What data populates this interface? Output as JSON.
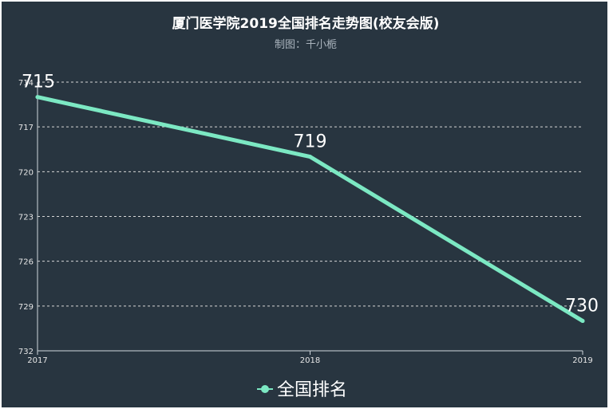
{
  "chart_data": {
    "type": "line",
    "title": "厦门医学院2019全国排名走势图(校友会版)",
    "subtitle": "制图：千小栀",
    "x": [
      "2017",
      "2018",
      "2019"
    ],
    "series": [
      {
        "name": "全国排名",
        "values": [
          715,
          719,
          730
        ]
      }
    ],
    "y_axis": {
      "ticks": [
        714,
        717,
        720,
        723,
        726,
        729,
        732
      ],
      "range": [
        714,
        732
      ],
      "inverse": true
    },
    "grid": true,
    "grid_style": "dashed",
    "legend_position": "bottom-center",
    "colors": {
      "background": "#283540",
      "line": "#7ce8c3"
    }
  }
}
